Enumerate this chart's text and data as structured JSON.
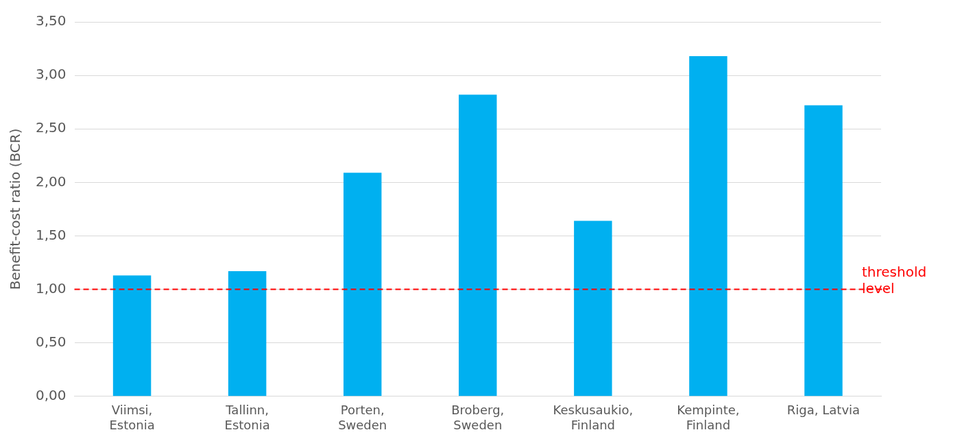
{
  "chart_data": {
    "type": "bar",
    "ylabel": "Benefit-cost ratio (BCR)",
    "categories": [
      "Viimsi, Estonia",
      "Tallinn, Estonia",
      "Porten, Sweden",
      "Broberg, Sweden",
      "Keskusaukio, Finland",
      "Kempinte, Finland",
      "Riga, Latvia"
    ],
    "values": [
      1.13,
      1.17,
      2.09,
      2.82,
      1.64,
      3.18,
      2.72
    ],
    "color": "#00b0f0",
    "ylim": [
      0,
      3.5
    ],
    "yticks": [
      {
        "value": 0,
        "label": "0,00"
      },
      {
        "value": 0.5,
        "label": "0,50"
      },
      {
        "value": 1,
        "label": "1,00"
      },
      {
        "value": 1.5,
        "label": "1,50"
      },
      {
        "value": 2,
        "label": "2,00"
      },
      {
        "value": 2.5,
        "label": "2,50"
      },
      {
        "value": 3,
        "label": "3,00"
      },
      {
        "value": 3.5,
        "label": "3,50"
      }
    ],
    "grid": "y",
    "legend": false,
    "ref_lines": [
      {
        "axis": "y",
        "value": 1,
        "label": "threshold level",
        "color": "#ff0000",
        "line_style": "dashed"
      }
    ]
  }
}
